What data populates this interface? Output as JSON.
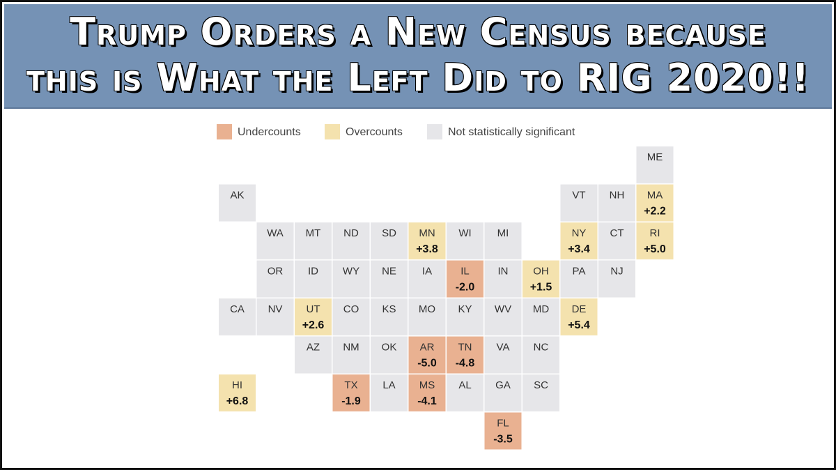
{
  "header": {
    "title_lines": [
      "Trump Orders a New Census because",
      "this is What the Left Did to RIG 2020!!"
    ]
  },
  "legend": [
    {
      "label": "Undercounts",
      "color": "#e9b191"
    },
    {
      "label": "Overcounts",
      "color": "#f4e2ae"
    },
    {
      "label": "Not statistically significant",
      "color": "#e6e6e9"
    }
  ],
  "tiles": [
    {
      "state": "ME",
      "color": "#e6e6e9"
    },
    {
      "state": "AK",
      "color": "#e6e6e9"
    },
    {
      "state": "VT",
      "color": "#e6e6e9"
    },
    {
      "state": "NH",
      "color": "#e6e6e9"
    },
    {
      "state": "MA",
      "change": "+2.2",
      "color": "#f4e2ae"
    },
    {
      "state": "WA",
      "color": "#e6e6e9"
    },
    {
      "state": "MT",
      "color": "#e6e6e9"
    },
    {
      "state": "ND",
      "color": "#e6e6e9"
    },
    {
      "state": "SD",
      "color": "#e6e6e9"
    },
    {
      "state": "MN",
      "change": "+3.8",
      "color": "#f4e2ae"
    },
    {
      "state": "WI",
      "color": "#e6e6e9"
    },
    {
      "state": "MI",
      "color": "#e6e6e9"
    },
    {
      "state": "NY",
      "change": "+3.4",
      "color": "#f4e2ae"
    },
    {
      "state": "CT",
      "color": "#e6e6e9"
    },
    {
      "state": "RI",
      "change": "+5.0",
      "color": "#f4e2ae"
    },
    {
      "state": "OR",
      "color": "#e6e6e9"
    },
    {
      "state": "ID",
      "color": "#e6e6e9"
    },
    {
      "state": "WY",
      "color": "#e6e6e9"
    },
    {
      "state": "NE",
      "color": "#e6e6e9"
    },
    {
      "state": "IA",
      "color": "#e6e6e9"
    },
    {
      "state": "IL",
      "change": "-2.0",
      "color": "#e9b191"
    },
    {
      "state": "IN",
      "color": "#e6e6e9"
    },
    {
      "state": "OH",
      "change": "+1.5",
      "color": "#f4e2ae"
    },
    {
      "state": "PA",
      "color": "#e6e6e9"
    },
    {
      "state": "NJ",
      "color": "#e6e6e9"
    },
    {
      "state": "CA",
      "color": "#e6e6e9"
    },
    {
      "state": "NV",
      "color": "#e6e6e9"
    },
    {
      "state": "UT",
      "change": "+2.6",
      "color": "#f4e2ae"
    },
    {
      "state": "CO",
      "color": "#e6e6e9"
    },
    {
      "state": "KS",
      "color": "#e6e6e9"
    },
    {
      "state": "MO",
      "color": "#e6e6e9"
    },
    {
      "state": "KY",
      "color": "#e6e6e9"
    },
    {
      "state": "WV",
      "color": "#e6e6e9"
    },
    {
      "state": "MD",
      "color": "#e6e6e9"
    },
    {
      "state": "DE",
      "change": "+5.4",
      "color": "#f4e2ae"
    },
    {
      "state": "AZ",
      "color": "#e6e6e9"
    },
    {
      "state": "NM",
      "color": "#e6e6e9"
    },
    {
      "state": "OK",
      "color": "#e6e6e9"
    },
    {
      "state": "AR",
      "change": "-5.0",
      "color": "#e9b191"
    },
    {
      "state": "TN",
      "change": "-4.8",
      "color": "#e9b191"
    },
    {
      "state": "VA",
      "color": "#e6e6e9"
    },
    {
      "state": "NC",
      "color": "#e6e6e9"
    },
    {
      "state": "HI",
      "change": "+6.8",
      "color": "#f4e2ae"
    },
    {
      "state": "TX",
      "change": "-1.9",
      "color": "#e9b191"
    },
    {
      "state": "LA",
      "color": "#e6e6e9"
    },
    {
      "state": "MS",
      "change": "-4.1",
      "color": "#e9b191"
    },
    {
      "state": "AL",
      "color": "#e6e6e9"
    },
    {
      "state": "GA",
      "color": "#e6e6e9"
    },
    {
      "state": "SC",
      "color": "#e6e6e9"
    },
    {
      "state": "FL",
      "change": "-3.5",
      "color": "#e9b191"
    }
  ]
}
